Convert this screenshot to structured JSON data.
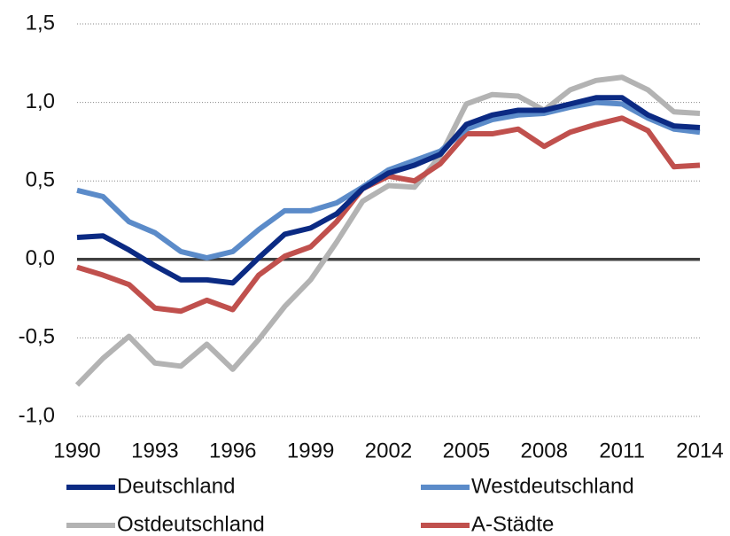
{
  "chart_data": {
    "type": "line",
    "x": [
      1990,
      1991,
      1992,
      1993,
      1994,
      1995,
      1996,
      1997,
      1998,
      1999,
      2000,
      2001,
      2002,
      2003,
      2004,
      2005,
      2006,
      2007,
      2008,
      2009,
      2010,
      2011,
      2012,
      2013,
      2014
    ],
    "xlim": [
      1990,
      2014
    ],
    "xticks": [
      1990,
      1993,
      1996,
      1999,
      2002,
      2005,
      2008,
      2011,
      2014
    ],
    "ylim": [
      -1.0,
      1.5
    ],
    "yticks": [
      {
        "value": -1.0,
        "label": "-1,0"
      },
      {
        "value": -0.5,
        "label": "-0,5"
      },
      {
        "value": 0.0,
        "label": "0,0"
      },
      {
        "value": 0.5,
        "label": "0,5"
      },
      {
        "value": 1.0,
        "label": "1,0"
      },
      {
        "value": 1.5,
        "label": "1,5"
      }
    ],
    "grid": true,
    "legend": "bottom",
    "series": [
      {
        "name": "Ostdeutschland",
        "color": "#b3b3b3",
        "values": [
          -0.8,
          -0.63,
          -0.49,
          -0.66,
          -0.68,
          -0.54,
          -0.7,
          -0.51,
          -0.3,
          -0.13,
          0.11,
          0.37,
          0.47,
          0.46,
          0.66,
          0.99,
          1.05,
          1.04,
          0.95,
          1.08,
          1.14,
          1.16,
          1.08,
          0.94,
          0.93
        ]
      },
      {
        "name": "A-Städte",
        "color": "#c0504d",
        "values": [
          -0.05,
          -0.1,
          -0.16,
          -0.31,
          -0.33,
          -0.26,
          -0.32,
          -0.1,
          0.02,
          0.08,
          0.24,
          0.45,
          0.53,
          0.5,
          0.61,
          0.8,
          0.8,
          0.83,
          0.72,
          0.81,
          0.86,
          0.9,
          0.82,
          0.59,
          0.6
        ]
      },
      {
        "name": "Westdeutschland",
        "color": "#5b8bc9",
        "values": [
          0.44,
          0.4,
          0.24,
          0.17,
          0.05,
          0.01,
          0.05,
          0.19,
          0.31,
          0.31,
          0.36,
          0.46,
          0.57,
          0.63,
          0.69,
          0.83,
          0.89,
          0.92,
          0.93,
          0.97,
          1.0,
          0.99,
          0.9,
          0.83,
          0.81
        ]
      },
      {
        "name": "Deutschland",
        "color": "#0b2a83",
        "values": [
          0.14,
          0.15,
          0.06,
          -0.04,
          -0.13,
          -0.13,
          -0.15,
          0.01,
          0.16,
          0.2,
          0.29,
          0.45,
          0.55,
          0.6,
          0.67,
          0.86,
          0.92,
          0.95,
          0.95,
          0.99,
          1.03,
          1.03,
          0.92,
          0.85,
          0.84
        ]
      }
    ]
  }
}
